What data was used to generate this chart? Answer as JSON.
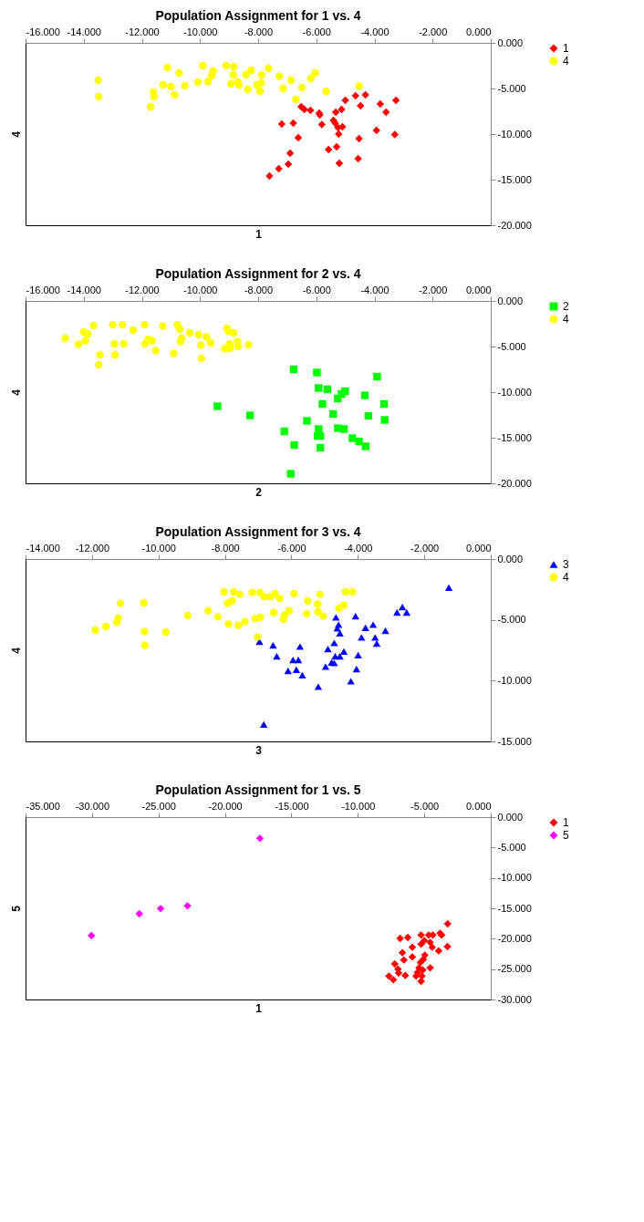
{
  "chart_data": [
    {
      "type": "scatter",
      "title": "Population Assignment for 1 vs. 4",
      "xlabel": "1",
      "ylabel": "4",
      "legend": "right",
      "grid": false,
      "xlim": [
        -16,
        0
      ],
      "ylim": [
        -20,
        0
      ],
      "xticks": [
        {
          "value": -16,
          "label": "-16.000"
        },
        {
          "value": -14,
          "label": "-14.000"
        },
        {
          "value": -12,
          "label": "-12.000"
        },
        {
          "value": -10,
          "label": "-10.000"
        },
        {
          "value": -8,
          "label": "-8.000"
        },
        {
          "value": -6,
          "label": "-6.000"
        },
        {
          "value": -4,
          "label": "-4.000"
        },
        {
          "value": -2,
          "label": "-2.000"
        },
        {
          "value": 0,
          "label": "0.000"
        }
      ],
      "yticks": [
        {
          "value": 0,
          "label": "0.000"
        },
        {
          "value": -5,
          "label": "-5.000"
        },
        {
          "value": -10,
          "label": "-10.000"
        },
        {
          "value": -15,
          "label": "-15.000"
        },
        {
          "value": -20,
          "label": "-20.000"
        }
      ],
      "series": [
        {
          "name": "1",
          "color": "#ff0000",
          "marker": "diamond",
          "x": [
            -7.61,
            -7.29,
            -6.96,
            -6.9,
            -7.19,
            -6.79,
            -6.62,
            -6.52,
            -6.41,
            -6.2,
            -5.9,
            -5.88,
            -5.81,
            -5.58,
            -5.41,
            -5.35,
            -5.33,
            -5.3,
            -5.25,
            -5.23,
            -5.21,
            -5.13,
            -5.1,
            -5.0,
            -4.65,
            -4.53,
            -4.56,
            -4.48,
            -4.31,
            -3.93,
            -3.8,
            -3.6,
            -3.3,
            -3.26
          ],
          "values": [
            -14.6,
            -13.8,
            -13.3,
            -12.1,
            -8.9,
            -8.8,
            -10.4,
            -7.0,
            -7.3,
            -7.4,
            -7.7,
            -7.9,
            -8.95,
            -11.7,
            -8.5,
            -8.8,
            -7.6,
            -11.4,
            -9.3,
            -10.0,
            -13.2,
            -7.3,
            -9.2,
            -6.3,
            -5.8,
            -10.5,
            -12.7,
            -6.9,
            -5.7,
            -9.6,
            -6.7,
            -7.6,
            -10.05,
            -6.3
          ]
        },
        {
          "name": "4",
          "color": "#ffff00",
          "marker": "circle",
          "x": [
            -13.5,
            -13.48,
            -11.7,
            -11.6,
            -11.58,
            -11.27,
            -11.12,
            -11.0,
            -10.87,
            -10.72,
            -10.52,
            -10.07,
            -9.9,
            -9.72,
            -9.6,
            -9.55,
            -9.1,
            -8.94,
            -8.86,
            -8.84,
            -8.7,
            -8.66,
            -8.42,
            -8.36,
            -8.24,
            -8.04,
            -7.94,
            -7.89,
            -7.88,
            -7.64,
            -7.27,
            -7.14,
            -6.87,
            -6.7,
            -6.49,
            -6.19,
            -6.04,
            -5.66,
            -4.53
          ],
          "values": [
            -4.1,
            -5.9,
            -7.0,
            -5.4,
            -5.9,
            -4.6,
            -2.7,
            -4.8,
            -5.7,
            -3.3,
            -4.7,
            -4.3,
            -2.5,
            -4.25,
            -3.6,
            -3.1,
            -2.5,
            -4.5,
            -3.5,
            -2.6,
            -4.3,
            -4.6,
            -3.5,
            -5.1,
            -3.0,
            -4.6,
            -5.3,
            -4.4,
            -3.5,
            -2.8,
            -3.65,
            -5.0,
            -4.1,
            -6.2,
            -4.9,
            -3.9,
            -3.3,
            -5.3,
            -4.75
          ]
        }
      ]
    },
    {
      "type": "scatter",
      "title": "Population Assignment for 2 vs. 4",
      "xlabel": "2",
      "ylabel": "4",
      "legend": "right",
      "grid": false,
      "xlim": [
        -16,
        0
      ],
      "ylim": [
        -20,
        0
      ],
      "xticks": [
        {
          "value": -16,
          "label": "-16.000"
        },
        {
          "value": -14,
          "label": "-14.000"
        },
        {
          "value": -12,
          "label": "-12.000"
        },
        {
          "value": -10,
          "label": "-10.000"
        },
        {
          "value": -8,
          "label": "-8.000"
        },
        {
          "value": -6,
          "label": "-6.000"
        },
        {
          "value": -4,
          "label": "-4.000"
        },
        {
          "value": -2,
          "label": "-2.000"
        },
        {
          "value": 0,
          "label": "0.000"
        }
      ],
      "yticks": [
        {
          "value": 0,
          "label": "0.000"
        },
        {
          "value": -5,
          "label": "-5.000"
        },
        {
          "value": -10,
          "label": "-10.000"
        },
        {
          "value": -15,
          "label": "-15.000"
        },
        {
          "value": -20,
          "label": "-20.000"
        }
      ],
      "series": [
        {
          "name": "2",
          "color": "#00ff00",
          "marker": "square",
          "x": [
            -9.4,
            -8.28,
            -7.1,
            -6.78,
            -6.76,
            -6.88,
            -6.32,
            -5.98,
            -5.92,
            -5.92,
            -5.96,
            -5.86,
            -5.86,
            -5.79,
            -5.62,
            -5.42,
            -5.26,
            -5.26,
            -5.13,
            -5.05,
            -5.01,
            -4.76,
            -4.53,
            -4.33,
            -4.3,
            -4.21,
            -3.91,
            -3.67,
            -3.65
          ],
          "values": [
            -11.55,
            -12.55,
            -14.3,
            -7.5,
            -15.8,
            -18.95,
            -13.15,
            -7.85,
            -9.55,
            -14.05,
            -14.8,
            -14.8,
            -16.1,
            -11.3,
            -9.7,
            -12.4,
            -10.7,
            -13.95,
            -10.2,
            -14.05,
            -9.9,
            -15.05,
            -15.4,
            -10.35,
            -15.95,
            -12.6,
            -8.3,
            -11.3,
            -13.05
          ]
        },
        {
          "name": "4",
          "color": "#ffff00",
          "marker": "circle",
          "x": [
            -14.64,
            -14.18,
            -14.0,
            -13.94,
            -13.86,
            -13.66,
            -13.48,
            -13.44,
            -13.0,
            -12.95,
            -12.92,
            -12.67,
            -12.62,
            -12.3,
            -11.9,
            -11.89,
            -11.78,
            -11.65,
            -11.52,
            -11.28,
            -10.9,
            -10.78,
            -10.7,
            -10.67,
            -10.63,
            -10.35,
            -10.05,
            -9.97,
            -9.95,
            -9.78,
            -9.63,
            -9.07,
            -9.15,
            -9.02,
            -8.98,
            -8.97,
            -8.84,
            -8.71,
            -8.69,
            -8.33
          ],
          "values": [
            -4.1,
            -4.75,
            -3.4,
            -4.35,
            -3.6,
            -2.7,
            -7.0,
            -5.9,
            -2.6,
            -4.7,
            -5.9,
            -2.6,
            -4.7,
            -3.2,
            -2.6,
            -4.7,
            -4.2,
            -4.35,
            -5.45,
            -2.75,
            -5.75,
            -2.6,
            -3.1,
            -4.45,
            -4.1,
            -3.5,
            -3.7,
            -4.85,
            -6.3,
            -3.95,
            -4.6,
            -3.0,
            -5.25,
            -3.35,
            -4.7,
            -5.2,
            -3.5,
            -4.45,
            -5.0,
            -4.8
          ]
        }
      ]
    },
    {
      "type": "scatter",
      "title": "Population Assignment for 3 vs. 4",
      "xlabel": "3",
      "ylabel": "4",
      "legend": "right",
      "grid": false,
      "xlim": [
        -14,
        0
      ],
      "ylim": [
        -15,
        0
      ],
      "xticks": [
        {
          "value": -14,
          "label": "-14.000"
        },
        {
          "value": -12,
          "label": "-12.000"
        },
        {
          "value": -10,
          "label": "-10.000"
        },
        {
          "value": -8,
          "label": "-8.000"
        },
        {
          "value": -6,
          "label": "-6.000"
        },
        {
          "value": -4,
          "label": "-4.000"
        },
        {
          "value": -2,
          "label": "-2.000"
        },
        {
          "value": 0,
          "label": "0.000"
        }
      ],
      "yticks": [
        {
          "value": 0,
          "label": "0.000"
        },
        {
          "value": -5,
          "label": "-5.000"
        },
        {
          "value": -10,
          "label": "-10.000"
        },
        {
          "value": -15,
          "label": "-15.000"
        }
      ],
      "series": [
        {
          "name": "3",
          "color": "#0000ff",
          "marker": "triangle",
          "x": [
            -6.96,
            -6.83,
            -6.55,
            -6.44,
            -6.1,
            -5.95,
            -5.85,
            -5.79,
            -5.74,
            -5.67,
            -5.19,
            -4.97,
            -4.9,
            -4.79,
            -4.71,
            -4.71,
            -4.68,
            -4.66,
            -4.62,
            -4.58,
            -4.54,
            -4.54,
            -4.42,
            -4.21,
            -4.07,
            -4.04,
            -3.99,
            -3.89,
            -3.77,
            -3.54,
            -3.48,
            -3.43,
            -3.17,
            -2.82,
            -2.66,
            -2.53,
            -1.26
          ],
          "values": [
            -6.8,
            -13.6,
            -7.1,
            -8.0,
            -9.2,
            -8.3,
            -9.1,
            -8.3,
            -7.2,
            -9.55,
            -10.5,
            -8.85,
            -7.4,
            -8.5,
            -6.9,
            -8.55,
            -8.0,
            -4.8,
            -5.7,
            -5.4,
            -8.0,
            -6.1,
            -7.6,
            -10.05,
            -4.7,
            -9.05,
            -7.9,
            -6.45,
            -5.65,
            -5.4,
            -6.45,
            -6.95,
            -5.9,
            -4.4,
            -3.95,
            -4.4,
            -2.35
          ]
        },
        {
          "name": "4",
          "color": "#ffff00",
          "marker": "circle",
          "x": [
            -11.9,
            -11.58,
            -11.25,
            -11.21,
            -11.14,
            -10.44,
            -10.42,
            -10.41,
            -9.78,
            -9.12,
            -8.5,
            -8.21,
            -8.03,
            -7.89,
            -7.92,
            -7.78,
            -7.74,
            -7.6,
            -7.55,
            -7.4,
            -7.18,
            -7.09,
            -7.02,
            -6.95,
            -6.94,
            -6.82,
            -6.63,
            -6.53,
            -6.49,
            -6.35,
            -6.24,
            -6.2,
            -6.07,
            -5.92,
            -5.54,
            -5.51,
            -5.21,
            -5.2,
            -5.14,
            -5.04,
            -4.57,
            -4.42,
            -4.37,
            -4.16
          ],
          "values": [
            -5.85,
            -5.55,
            -5.2,
            -4.85,
            -3.65,
            -3.6,
            -5.95,
            -7.1,
            -6.0,
            -4.65,
            -4.25,
            -4.75,
            -2.7,
            -5.35,
            -3.65,
            -3.45,
            -2.7,
            -5.45,
            -2.9,
            -5.15,
            -2.75,
            -4.9,
            -6.4,
            -2.75,
            -4.8,
            -3.1,
            -3.1,
            -4.4,
            -2.85,
            -3.25,
            -4.95,
            -4.6,
            -4.25,
            -2.85,
            -4.5,
            -3.45,
            -3.7,
            -4.35,
            -2.9,
            -4.7,
            -4.05,
            -3.8,
            -2.7,
            -2.7
          ]
        }
      ]
    },
    {
      "type": "scatter",
      "title": "Population Assignment for 1 vs. 5",
      "xlabel": "1",
      "ylabel": "5",
      "legend": "right",
      "grid": false,
      "xlim": [
        -35,
        0
      ],
      "ylim": [
        -30,
        0
      ],
      "xticks": [
        {
          "value": -35,
          "label": "-35.000"
        },
        {
          "value": -30,
          "label": "-30.000"
        },
        {
          "value": -25,
          "label": "-25.000"
        },
        {
          "value": -20,
          "label": "-20.000"
        },
        {
          "value": -15,
          "label": "-15.000"
        },
        {
          "value": -10,
          "label": "-10.000"
        },
        {
          "value": -5,
          "label": "-5.000"
        },
        {
          "value": 0,
          "label": "0.000"
        }
      ],
      "yticks": [
        {
          "value": 0,
          "label": "0.000"
        },
        {
          "value": -5,
          "label": "-5.000"
        },
        {
          "value": -10,
          "label": "-10.000"
        },
        {
          "value": -15,
          "label": "-15.000"
        },
        {
          "value": -20,
          "label": "-20.000"
        },
        {
          "value": -25,
          "label": "-25.000"
        },
        {
          "value": -30,
          "label": "-30.000"
        }
      ],
      "series": [
        {
          "name": "1",
          "color": "#ff0000",
          "marker": "diamond",
          "x": [
            -7.66,
            -7.33,
            -7.22,
            -6.98,
            -6.93,
            -6.82,
            -6.65,
            -6.54,
            -6.43,
            -6.24,
            -5.9,
            -5.9,
            -5.62,
            -5.51,
            -5.4,
            -5.29,
            -5.24,
            -5.24,
            -5.24,
            -5.18,
            -5.11,
            -5.07,
            -5.0,
            -4.96,
            -4.67,
            -4.56,
            -4.56,
            -4.41,
            -4.36,
            -3.92,
            -3.81,
            -3.7,
            -3.26,
            -3.24
          ],
          "values": [
            -26.15,
            -26.75,
            -24.15,
            -25.0,
            -25.65,
            -19.95,
            -22.3,
            -23.5,
            -26.05,
            -19.8,
            -21.4,
            -23.0,
            -26.15,
            -25.55,
            -24.8,
            -23.9,
            -19.4,
            -20.9,
            -27.0,
            -26.15,
            -25.15,
            -23.4,
            -20.3,
            -22.7,
            -19.4,
            -20.6,
            -24.8,
            -21.4,
            -19.4,
            -22.0,
            -19.1,
            -19.4,
            -21.3,
            -17.55
          ]
        },
        {
          "name": "5",
          "color": "#ff00ff",
          "marker": "diamond",
          "x": [
            -30.04,
            -26.44,
            -24.84,
            -22.82,
            -17.37
          ],
          "values": [
            -19.5,
            -15.9,
            -15.05,
            -14.6,
            -3.5
          ]
        }
      ]
    }
  ]
}
